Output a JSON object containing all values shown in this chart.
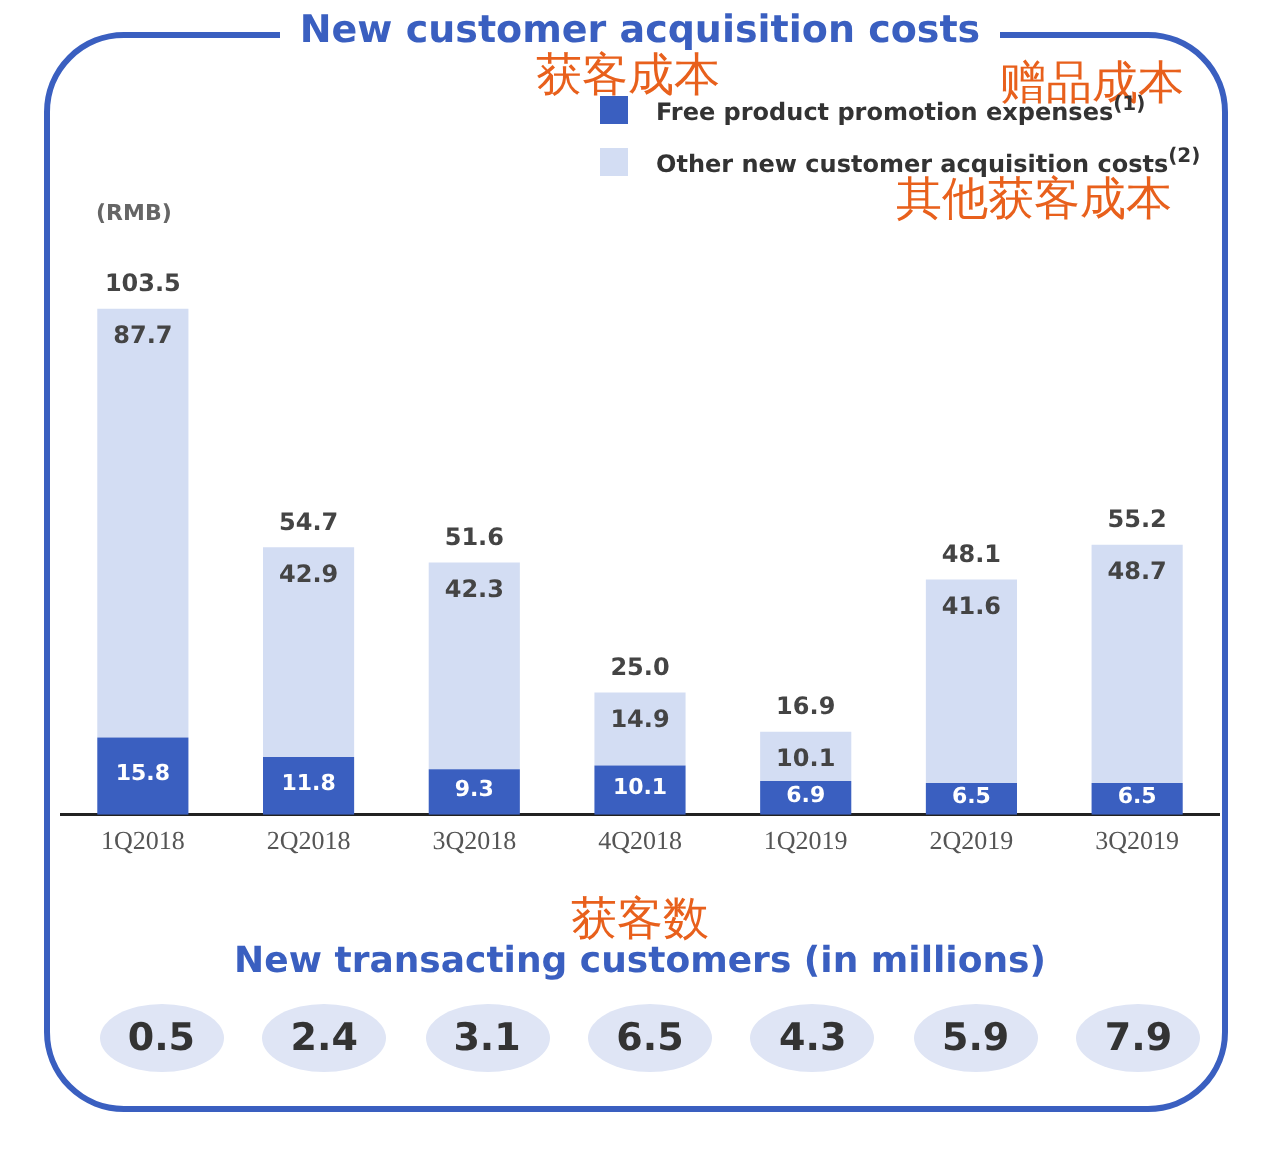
{
  "chart_data": [
    {
      "type": "bar",
      "title": "New customer acquisition costs",
      "ylabel": "(RMB)",
      "annotations": [
        "获客成本",
        "赠品成本",
        "其他获客成本"
      ],
      "categories": [
        "1Q2018",
        "2Q2018",
        "3Q2018",
        "4Q2018",
        "1Q2019",
        "2Q2019",
        "3Q2019"
      ],
      "series": [
        {
          "name": "Free product promotion expenses$^{(1)}$",
          "color": "#3a5fc0",
          "values": [
            15.8,
            11.8,
            9.3,
            10.1,
            6.9,
            6.5,
            6.5
          ]
        },
        {
          "name": "Other new customer acquisition costs$^{(2)}$",
          "color": "#d3ddf3",
          "values": [
            87.7,
            42.9,
            42.3,
            14.9,
            10.1,
            41.6,
            48.7
          ]
        }
      ],
      "stacked": true,
      "data_labels": true,
      "totals": [
        "103.5",
        "54.7",
        "51.6",
        "25.0",
        "16.9",
        "48.1",
        "55.2"
      ],
      "grid": false,
      "legend": "top right"
    },
    {
      "type": "other",
      "title": "New transacting customers (in millions)",
      "annotations": [
        "获客数"
      ],
      "categories": [
        null,
        null,
        null,
        null,
        null,
        null,
        null
      ],
      "values": [
        0.5,
        2.4,
        3.1,
        6.5,
        4.3,
        5.9,
        7.9
      ],
      "color": "#dfe5f5",
      "data_labels": true
    }
  ]
}
